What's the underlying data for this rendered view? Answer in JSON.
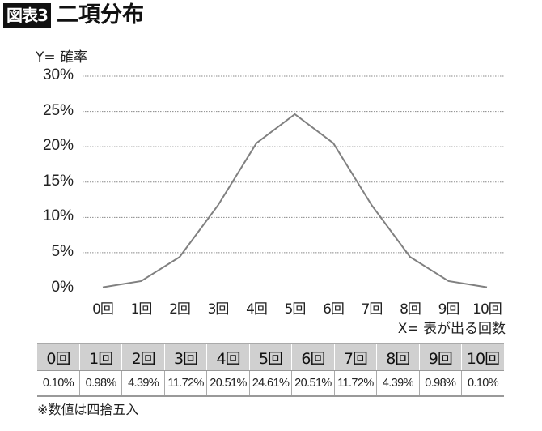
{
  "header": {
    "badge": "図表3",
    "title": "二項分布"
  },
  "chart_data": {
    "type": "line",
    "title": "二項分布",
    "xlabel": "X= 表が出る回数",
    "ylabel": "Y= 確率",
    "categories": [
      "0回",
      "1回",
      "2回",
      "3回",
      "4回",
      "5回",
      "6回",
      "7回",
      "8回",
      "9回",
      "10回"
    ],
    "values": [
      0.1,
      0.98,
      4.39,
      11.72,
      20.51,
      24.61,
      20.51,
      11.72,
      4.39,
      0.98,
      0.1
    ],
    "value_labels": [
      "0.10%",
      "0.98%",
      "4.39%",
      "11.72%",
      "20.51%",
      "24.61%",
      "20.51%",
      "11.72%",
      "4.39%",
      "0.98%",
      "0.10%"
    ],
    "yticks": [
      "0%",
      "5%",
      "10%",
      "15%",
      "20%",
      "25%",
      "30%"
    ],
    "ylim": [
      0,
      30
    ],
    "grid": "horizontal dotted",
    "legend": "none",
    "line_color": "#808080"
  },
  "table": {
    "headers": [
      "0回",
      "1回",
      "2回",
      "3回",
      "4回",
      "5回",
      "6回",
      "7回",
      "8回",
      "9回",
      "10回"
    ],
    "values": [
      "0.10%",
      "0.98%",
      "4.39%",
      "11.72%",
      "20.51%",
      "24.61%",
      "20.51%",
      "11.72%",
      "4.39%",
      "0.98%",
      "0.10%"
    ]
  },
  "note": "※数値は四捨五入"
}
